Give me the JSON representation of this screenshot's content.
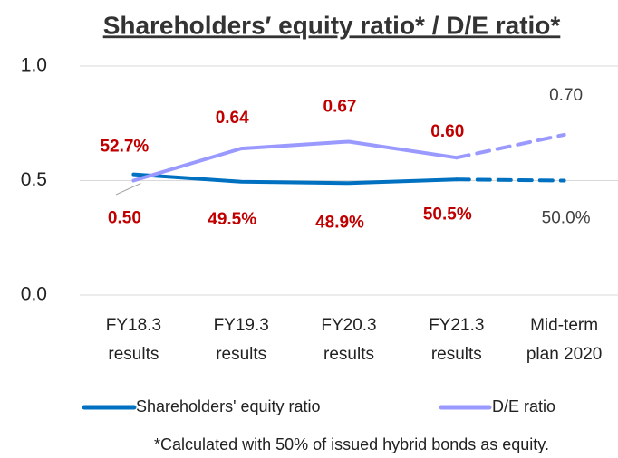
{
  "chart_data": {
    "type": "line",
    "title": "Shareholders′ equity ratio* / D/E ratio*",
    "categories": [
      [
        "FY18.3",
        "results"
      ],
      [
        "FY19.3",
        "results"
      ],
      [
        "FY20.3",
        "results"
      ],
      [
        "FY21.3",
        "results"
      ],
      [
        "Mid-term",
        "plan 2020"
      ]
    ],
    "series": [
      {
        "name": "Shareholders' equity ratio",
        "color": "#0070c0",
        "values": [
          0.527,
          0.495,
          0.489,
          0.505,
          0.5
        ],
        "value_labels": [
          "52.7%",
          "49.5%",
          "48.9%",
          "50.5%",
          "50.0%"
        ]
      },
      {
        "name": "D/E ratio",
        "color": "#9999ff",
        "values": [
          0.5,
          0.64,
          0.67,
          0.6,
          0.7
        ],
        "value_labels": [
          "0.50",
          "0.64",
          "0.67",
          "0.60",
          "0.70"
        ]
      }
    ],
    "value_label_colors": [
      "#c00000",
      "#c00000",
      "#c00000",
      "#c00000",
      "#404040"
    ],
    "ylim": [
      0,
      1
    ],
    "yticks": [
      {
        "value": 0,
        "label": "0.0"
      },
      0.5,
      {
        "value": 1,
        "label": "1.0"
      }
    ],
    "grid": true,
    "footnote": "*Calculated with 50% of issued hybrid bonds as equity."
  }
}
